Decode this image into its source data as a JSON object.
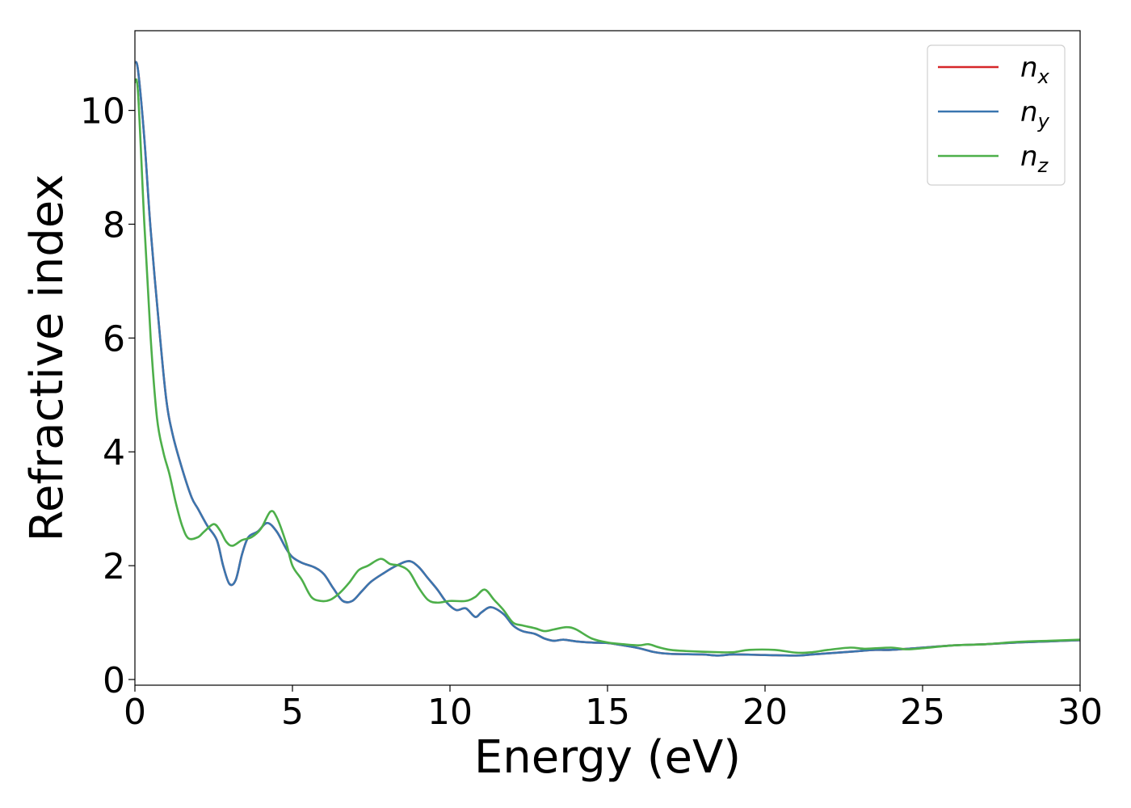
{
  "chart_data": {
    "type": "line",
    "title": "",
    "xlabel": "Energy (eV)",
    "ylabel": "Refractive index",
    "xlim": [
      0,
      30
    ],
    "ylim": [
      -0.1,
      11.4
    ],
    "xticks": [
      0,
      5,
      10,
      15,
      20,
      25,
      30
    ],
    "yticks": [
      0,
      2,
      4,
      6,
      8,
      10
    ],
    "grid": false,
    "legend_position": "top-right",
    "series": [
      {
        "name": "n_x",
        "base": "n",
        "sub": "x",
        "color": "#d62728",
        "points": [
          [
            0,
            10.85
          ],
          [
            0.1,
            10.7
          ],
          [
            0.3,
            9.5
          ],
          [
            0.5,
            7.9
          ],
          [
            0.8,
            6.0
          ],
          [
            1.0,
            4.9
          ],
          [
            1.2,
            4.3
          ],
          [
            1.5,
            3.7
          ],
          [
            1.8,
            3.2
          ],
          [
            2.0,
            3.0
          ],
          [
            2.3,
            2.7
          ],
          [
            2.6,
            2.45
          ],
          [
            2.8,
            2.0
          ],
          [
            3.0,
            1.68
          ],
          [
            3.2,
            1.75
          ],
          [
            3.4,
            2.2
          ],
          [
            3.6,
            2.5
          ],
          [
            3.9,
            2.6
          ],
          [
            4.2,
            2.75
          ],
          [
            4.5,
            2.6
          ],
          [
            4.8,
            2.3
          ],
          [
            5.0,
            2.15
          ],
          [
            5.3,
            2.05
          ],
          [
            5.7,
            1.97
          ],
          [
            6.0,
            1.85
          ],
          [
            6.3,
            1.6
          ],
          [
            6.6,
            1.38
          ],
          [
            6.9,
            1.38
          ],
          [
            7.2,
            1.55
          ],
          [
            7.5,
            1.72
          ],
          [
            7.9,
            1.87
          ],
          [
            8.3,
            2.0
          ],
          [
            8.7,
            2.08
          ],
          [
            9.0,
            1.98
          ],
          [
            9.3,
            1.78
          ],
          [
            9.6,
            1.58
          ],
          [
            9.9,
            1.35
          ],
          [
            10.2,
            1.22
          ],
          [
            10.5,
            1.25
          ],
          [
            10.8,
            1.1
          ],
          [
            11.0,
            1.18
          ],
          [
            11.3,
            1.27
          ],
          [
            11.7,
            1.15
          ],
          [
            12.0,
            0.95
          ],
          [
            12.3,
            0.85
          ],
          [
            12.7,
            0.8
          ],
          [
            13.0,
            0.72
          ],
          [
            13.3,
            0.68
          ],
          [
            13.6,
            0.7
          ],
          [
            14.0,
            0.67
          ],
          [
            14.5,
            0.65
          ],
          [
            15.0,
            0.64
          ],
          [
            15.5,
            0.6
          ],
          [
            16.0,
            0.55
          ],
          [
            16.5,
            0.48
          ],
          [
            17.0,
            0.45
          ],
          [
            18.0,
            0.44
          ],
          [
            18.5,
            0.42
          ],
          [
            19.0,
            0.44
          ],
          [
            20.0,
            0.43
          ],
          [
            21.0,
            0.42
          ],
          [
            21.5,
            0.44
          ],
          [
            22.5,
            0.48
          ],
          [
            23.0,
            0.5
          ],
          [
            23.5,
            0.52
          ],
          [
            24.0,
            0.52
          ],
          [
            25.0,
            0.56
          ],
          [
            26.0,
            0.6
          ],
          [
            27.0,
            0.62
          ],
          [
            28.0,
            0.65
          ],
          [
            29.0,
            0.67
          ],
          [
            30.0,
            0.69
          ]
        ]
      },
      {
        "name": "n_y",
        "base": "n",
        "sub": "y",
        "color": "#3a76af",
        "points": [
          [
            0,
            10.85
          ],
          [
            0.1,
            10.7
          ],
          [
            0.3,
            9.5
          ],
          [
            0.5,
            7.9
          ],
          [
            0.8,
            6.0
          ],
          [
            1.0,
            4.9
          ],
          [
            1.2,
            4.3
          ],
          [
            1.5,
            3.7
          ],
          [
            1.8,
            3.2
          ],
          [
            2.0,
            3.0
          ],
          [
            2.3,
            2.7
          ],
          [
            2.6,
            2.45
          ],
          [
            2.8,
            2.0
          ],
          [
            3.0,
            1.68
          ],
          [
            3.2,
            1.75
          ],
          [
            3.4,
            2.2
          ],
          [
            3.6,
            2.5
          ],
          [
            3.9,
            2.6
          ],
          [
            4.2,
            2.75
          ],
          [
            4.5,
            2.6
          ],
          [
            4.8,
            2.3
          ],
          [
            5.0,
            2.15
          ],
          [
            5.3,
            2.05
          ],
          [
            5.7,
            1.97
          ],
          [
            6.0,
            1.85
          ],
          [
            6.3,
            1.6
          ],
          [
            6.6,
            1.38
          ],
          [
            6.9,
            1.38
          ],
          [
            7.2,
            1.55
          ],
          [
            7.5,
            1.72
          ],
          [
            7.9,
            1.87
          ],
          [
            8.3,
            2.0
          ],
          [
            8.7,
            2.08
          ],
          [
            9.0,
            1.98
          ],
          [
            9.3,
            1.78
          ],
          [
            9.6,
            1.58
          ],
          [
            9.9,
            1.35
          ],
          [
            10.2,
            1.22
          ],
          [
            10.5,
            1.25
          ],
          [
            10.8,
            1.1
          ],
          [
            11.0,
            1.18
          ],
          [
            11.3,
            1.27
          ],
          [
            11.7,
            1.15
          ],
          [
            12.0,
            0.95
          ],
          [
            12.3,
            0.85
          ],
          [
            12.7,
            0.8
          ],
          [
            13.0,
            0.72
          ],
          [
            13.3,
            0.68
          ],
          [
            13.6,
            0.7
          ],
          [
            14.0,
            0.67
          ],
          [
            14.5,
            0.65
          ],
          [
            15.0,
            0.64
          ],
          [
            15.5,
            0.6
          ],
          [
            16.0,
            0.55
          ],
          [
            16.5,
            0.48
          ],
          [
            17.0,
            0.45
          ],
          [
            18.0,
            0.44
          ],
          [
            18.5,
            0.42
          ],
          [
            19.0,
            0.44
          ],
          [
            20.0,
            0.43
          ],
          [
            21.0,
            0.42
          ],
          [
            21.5,
            0.44
          ],
          [
            22.5,
            0.48
          ],
          [
            23.0,
            0.5
          ],
          [
            23.5,
            0.52
          ],
          [
            24.0,
            0.52
          ],
          [
            25.0,
            0.56
          ],
          [
            26.0,
            0.6
          ],
          [
            27.0,
            0.62
          ],
          [
            28.0,
            0.65
          ],
          [
            29.0,
            0.67
          ],
          [
            30.0,
            0.69
          ]
        ]
      },
      {
        "name": "n_z",
        "base": "n",
        "sub": "z",
        "color": "#4daf4a",
        "points": [
          [
            0,
            10.5
          ],
          [
            0.1,
            10.3
          ],
          [
            0.3,
            8.0
          ],
          [
            0.5,
            6.0
          ],
          [
            0.7,
            4.6
          ],
          [
            0.9,
            4.0
          ],
          [
            1.1,
            3.6
          ],
          [
            1.3,
            3.1
          ],
          [
            1.5,
            2.7
          ],
          [
            1.7,
            2.48
          ],
          [
            2.0,
            2.5
          ],
          [
            2.2,
            2.6
          ],
          [
            2.5,
            2.73
          ],
          [
            2.7,
            2.62
          ],
          [
            2.9,
            2.42
          ],
          [
            3.1,
            2.35
          ],
          [
            3.4,
            2.45
          ],
          [
            3.7,
            2.5
          ],
          [
            4.0,
            2.65
          ],
          [
            4.3,
            2.95
          ],
          [
            4.5,
            2.85
          ],
          [
            4.8,
            2.4
          ],
          [
            5.0,
            2.0
          ],
          [
            5.3,
            1.75
          ],
          [
            5.6,
            1.45
          ],
          [
            5.9,
            1.38
          ],
          [
            6.2,
            1.4
          ],
          [
            6.5,
            1.52
          ],
          [
            6.8,
            1.7
          ],
          [
            7.1,
            1.92
          ],
          [
            7.4,
            2.0
          ],
          [
            7.8,
            2.12
          ],
          [
            8.1,
            2.03
          ],
          [
            8.4,
            2.0
          ],
          [
            8.7,
            1.9
          ],
          [
            9.0,
            1.62
          ],
          [
            9.3,
            1.4
          ],
          [
            9.6,
            1.35
          ],
          [
            10.0,
            1.38
          ],
          [
            10.5,
            1.38
          ],
          [
            10.8,
            1.45
          ],
          [
            11.1,
            1.58
          ],
          [
            11.4,
            1.4
          ],
          [
            11.7,
            1.22
          ],
          [
            12.0,
            1.0
          ],
          [
            12.3,
            0.95
          ],
          [
            12.7,
            0.9
          ],
          [
            13.0,
            0.85
          ],
          [
            13.3,
            0.88
          ],
          [
            13.7,
            0.92
          ],
          [
            14.0,
            0.88
          ],
          [
            14.5,
            0.72
          ],
          [
            15.0,
            0.65
          ],
          [
            15.5,
            0.62
          ],
          [
            16.0,
            0.6
          ],
          [
            16.3,
            0.62
          ],
          [
            16.6,
            0.57
          ],
          [
            17.0,
            0.52
          ],
          [
            17.5,
            0.5
          ],
          [
            18.5,
            0.48
          ],
          [
            19.0,
            0.48
          ],
          [
            19.5,
            0.52
          ],
          [
            20.3,
            0.52
          ],
          [
            21.0,
            0.47
          ],
          [
            21.5,
            0.48
          ],
          [
            22.0,
            0.52
          ],
          [
            22.7,
            0.56
          ],
          [
            23.2,
            0.54
          ],
          [
            24.0,
            0.56
          ],
          [
            24.5,
            0.53
          ],
          [
            25.0,
            0.55
          ],
          [
            26.0,
            0.6
          ],
          [
            27.0,
            0.62
          ],
          [
            28.0,
            0.66
          ],
          [
            29.0,
            0.68
          ],
          [
            30.0,
            0.7
          ]
        ]
      }
    ]
  }
}
